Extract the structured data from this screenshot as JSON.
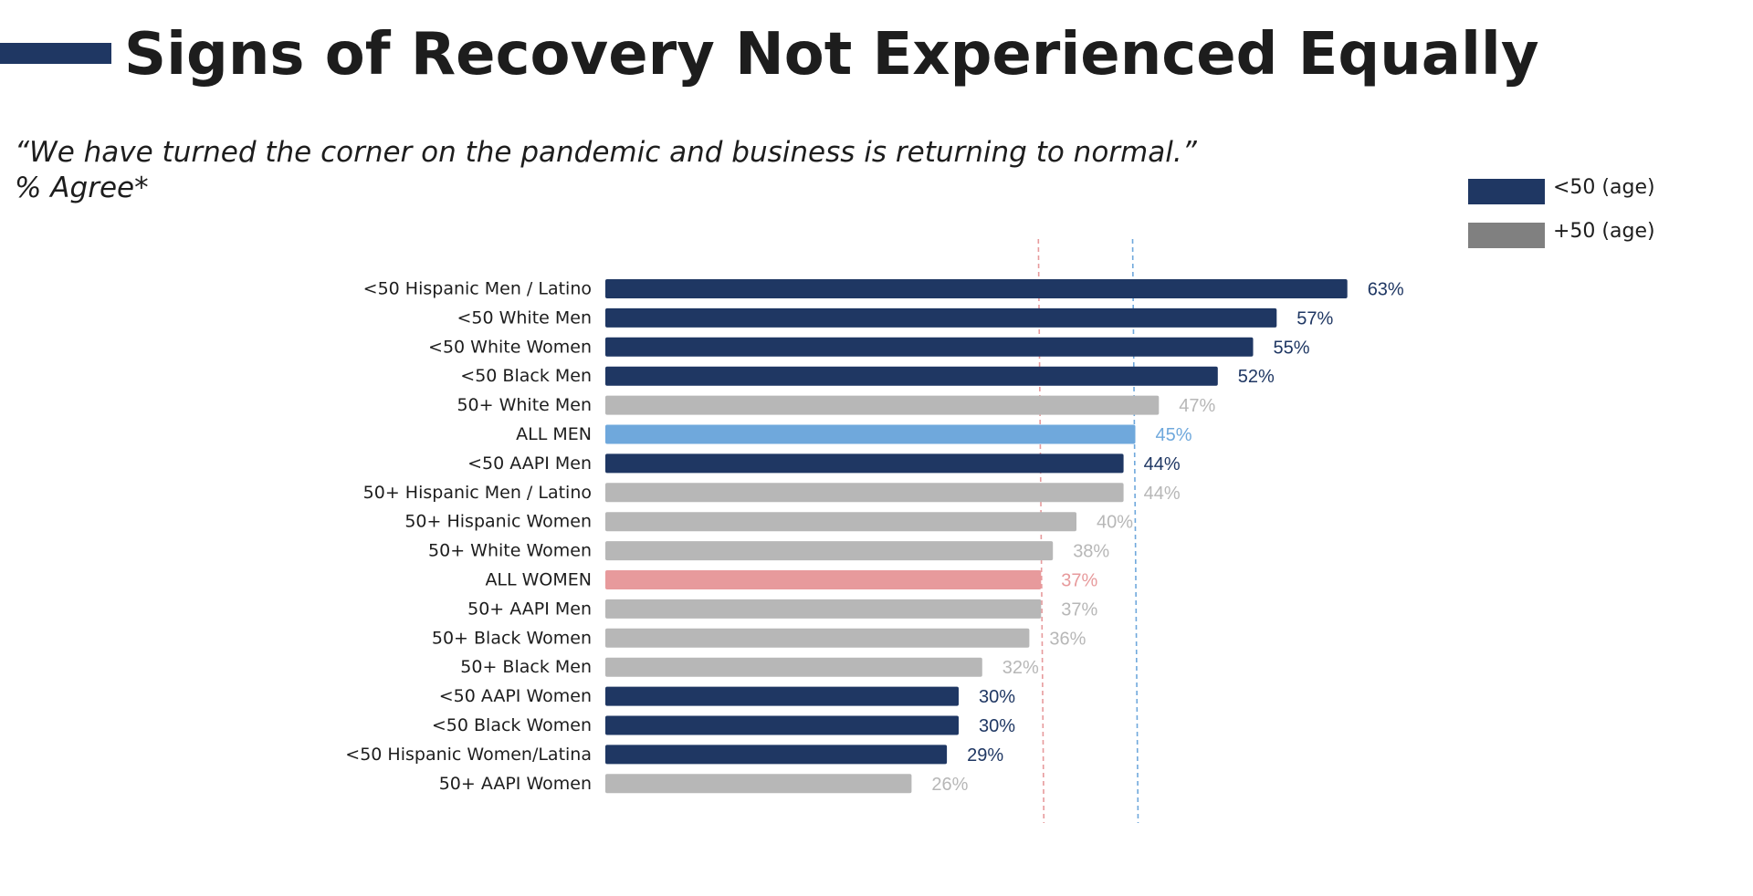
{
  "header": {
    "title": "Signs of Recovery Not Experienced Equally",
    "quote": "“We have turned the corner on the pandemic and business is returning to normal.”",
    "measure": "% Agree*"
  },
  "colors": {
    "under50": "#1f3763",
    "over50": "#b7b7b7",
    "legend_over50": "#808080",
    "all_men": "#6fa8dc",
    "all_women": "#e79a9c",
    "accent": "#1f3763"
  },
  "legend": [
    {
      "label": "<50 (age)",
      "color": "#1f3763"
    },
    {
      "label": "+50 (age)",
      "color": "#808080"
    }
  ],
  "chart_data": {
    "type": "bar",
    "orientation": "horizontal",
    "categories": [
      "<50 Hispanic Men / Latino",
      "<50 White Men",
      "<50 White Women",
      "<50 Black Men",
      "50+ White Men",
      "ALL MEN",
      "<50 AAPI Men",
      "50+ Hispanic Men / Latino",
      "50+ Hispanic Women",
      "50+ White Women",
      "ALL WOMEN",
      "50+ AAPI Men",
      "50+ Black Women",
      "50+ Black Men",
      "<50 AAPI Women",
      "<50 Black Women",
      "<50 Hispanic Women/Latina",
      "50+ AAPI Women"
    ],
    "values": [
      63,
      57,
      55,
      52,
      47,
      45,
      44,
      44,
      40,
      38,
      37,
      37,
      36,
      32,
      30,
      30,
      29,
      26
    ],
    "value_labels": [
      "63%",
      "57%",
      "55%",
      "52%",
      "47%",
      "45%",
      "44%",
      "44%",
      "40%",
      "38%",
      "37%",
      "37%",
      "36%",
      "32%",
      "30%",
      "30%",
      "29%",
      "26%"
    ],
    "groups": [
      "under50",
      "under50",
      "under50",
      "under50",
      "over50",
      "all_men",
      "under50",
      "over50",
      "over50",
      "over50",
      "all_women",
      "over50",
      "over50",
      "over50",
      "under50",
      "under50",
      "under50",
      "over50"
    ],
    "reference_lines": [
      {
        "value": 37,
        "color": "#e79a9c",
        "style": "dashed"
      },
      {
        "value": 45,
        "color": "#6fa8dc",
        "style": "dashed"
      }
    ],
    "xlim": [
      0,
      63
    ],
    "grid": false
  }
}
